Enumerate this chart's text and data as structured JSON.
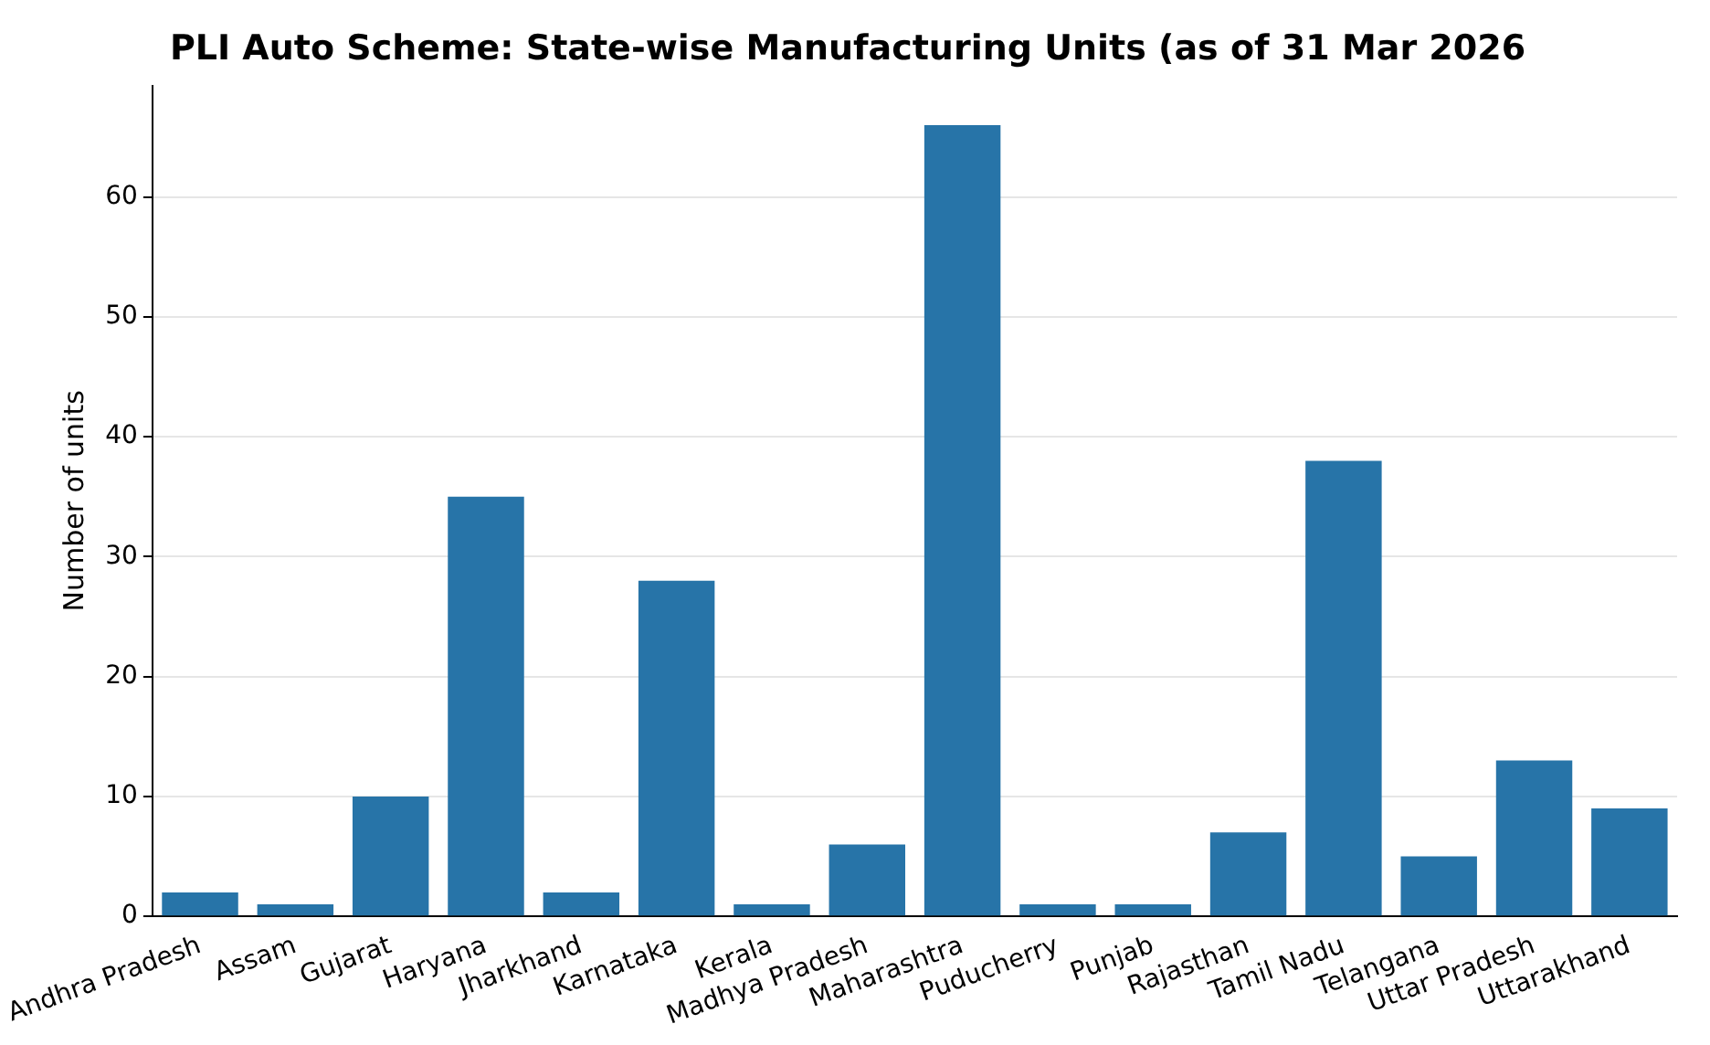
{
  "chart_data": {
    "type": "bar",
    "title": "PLI Auto Scheme: State-wise Manufacturing Units (as of 31 Mar 2026",
    "ylabel": "Number of units",
    "categories": [
      "Andhra Pradesh",
      "Assam",
      "Gujarat",
      "Haryana",
      "Jharkhand",
      "Karnataka",
      "Kerala",
      "Madhya Pradesh",
      "Maharashtra",
      "Puducherry",
      "Punjab",
      "Rajasthan",
      "Tamil Nadu",
      "Telangana",
      "Uttar Pradesh",
      "Uttarakhand"
    ],
    "values": [
      2,
      1,
      10,
      35,
      2,
      28,
      1,
      6,
      66,
      1,
      1,
      7,
      38,
      5,
      13,
      9
    ],
    "color": "#2774a8",
    "ylim": [
      0,
      69.3
    ],
    "yticks": [
      0,
      10,
      20,
      30,
      40,
      50,
      60
    ],
    "grid": "y",
    "legend": false
  }
}
